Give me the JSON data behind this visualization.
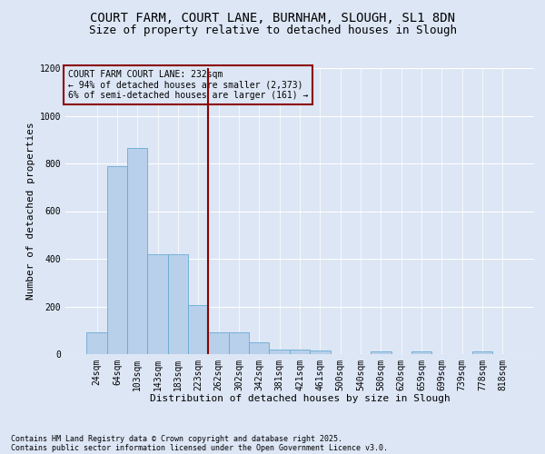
{
  "title_line1": "COURT FARM, COURT LANE, BURNHAM, SLOUGH, SL1 8DN",
  "title_line2": "Size of property relative to detached houses in Slough",
  "xlabel": "Distribution of detached houses by size in Slough",
  "ylabel": "Number of detached properties",
  "annotation_title": "COURT FARM COURT LANE: 232sqm",
  "annotation_line2": "← 94% of detached houses are smaller (2,373)",
  "annotation_line3": "6% of semi-detached houses are larger (161) →",
  "footnote1": "Contains HM Land Registry data © Crown copyright and database right 2025.",
  "footnote2": "Contains public sector information licensed under the Open Government Licence v3.0.",
  "categories": [
    "24sqm",
    "64sqm",
    "103sqm",
    "143sqm",
    "183sqm",
    "223sqm",
    "262sqm",
    "302sqm",
    "342sqm",
    "381sqm",
    "421sqm",
    "461sqm",
    "500sqm",
    "540sqm",
    "580sqm",
    "620sqm",
    "659sqm",
    "699sqm",
    "739sqm",
    "778sqm",
    "818sqm"
  ],
  "bar_values": [
    90,
    790,
    865,
    420,
    420,
    205,
    90,
    90,
    50,
    20,
    20,
    15,
    0,
    0,
    10,
    0,
    10,
    0,
    0,
    10,
    0
  ],
  "bar_color": "#b8d0ea",
  "bar_edge_color": "#6aaad4",
  "vline_color": "#8b0000",
  "vline_x": 5.5,
  "ylim": [
    0,
    1200
  ],
  "yticks": [
    0,
    200,
    400,
    600,
    800,
    1000,
    1200
  ],
  "background_color": "#dce6f5",
  "grid_color": "#ffffff",
  "title_fontsize": 10,
  "subtitle_fontsize": 9,
  "axis_label_fontsize": 8,
  "tick_fontsize": 7,
  "footnote_fontsize": 6,
  "annot_fontsize": 7
}
